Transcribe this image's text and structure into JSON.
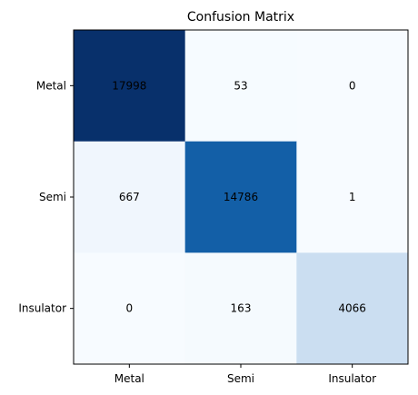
{
  "chart_data": {
    "type": "heatmap",
    "title": "Confusion Matrix",
    "xlabel": "",
    "ylabel": "",
    "x_categories": [
      "Metal",
      "Semi",
      "Insulator"
    ],
    "y_categories": [
      "Metal",
      "Semi",
      "Insulator"
    ],
    "values": [
      [
        17998,
        53,
        0
      ],
      [
        667,
        14786,
        1
      ],
      [
        0,
        163,
        4066
      ]
    ],
    "colormap": "Blues",
    "grid": false
  }
}
